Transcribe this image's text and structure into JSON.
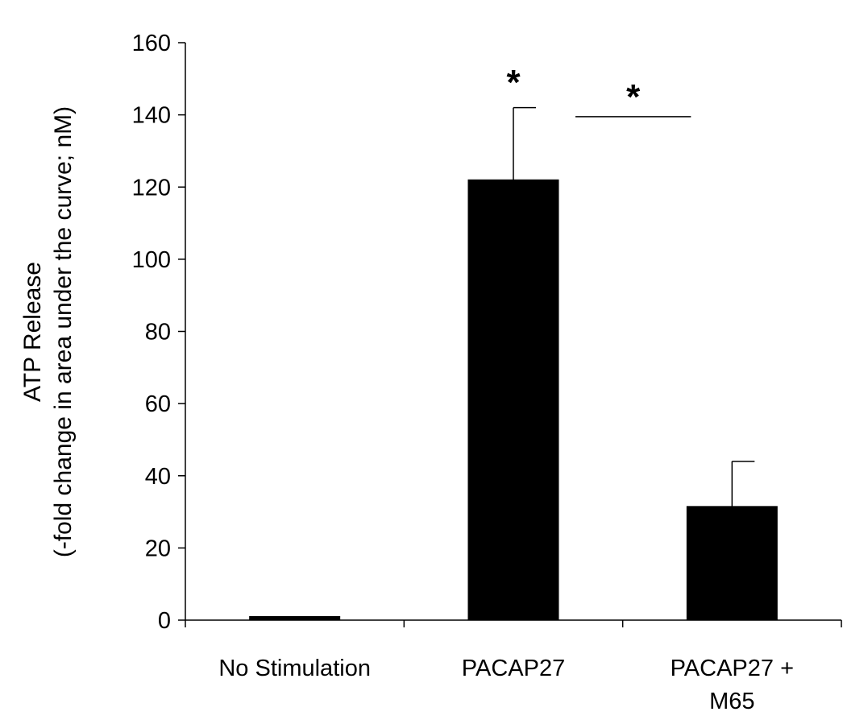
{
  "chart_data": {
    "type": "bar",
    "categories": [
      "No Stimulation",
      "PACAP27",
      "PACAP27 + M65"
    ],
    "category_lines": [
      [
        "No Stimulation"
      ],
      [
        "PACAP27"
      ],
      [
        "PACAP27 +",
        "M65"
      ]
    ],
    "values": [
      1,
      122,
      31.5
    ],
    "error_upper": [
      0,
      20,
      12.5
    ],
    "ylabel_lines": [
      "ATP Release",
      "(-fold change in area under the curve; nM)"
    ],
    "ylim": [
      0,
      160
    ],
    "yticks": [
      0,
      20,
      40,
      60,
      80,
      100,
      120,
      140,
      160
    ],
    "bar_color": "#000000",
    "grid": false,
    "annotations": {
      "bar_star": {
        "text": "*",
        "category": "PACAP27"
      },
      "comparison": {
        "text": "*",
        "from": "PACAP27",
        "to": "PACAP27 + M65",
        "at_value": 139.5
      }
    }
  }
}
